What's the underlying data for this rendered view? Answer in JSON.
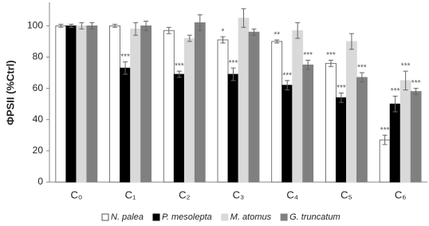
{
  "chart_data": {
    "type": "bar",
    "y_label": "ΦPSII (%Ctrl)",
    "categories": [
      "C₀",
      "C₁",
      "C₂",
      "C₃",
      "C₄",
      "C₅",
      "C₆"
    ],
    "ylim": [
      0,
      115
    ],
    "yticks": [
      0,
      20,
      40,
      60,
      80,
      100
    ],
    "legend": "bottom",
    "series": [
      {
        "name": "N. palea",
        "color": "#ffffff",
        "values": [
          100,
          100,
          97,
          91,
          90,
          76,
          27
        ],
        "errors": [
          1,
          1,
          2,
          2,
          1,
          2,
          3
        ],
        "significance": [
          null,
          null,
          null,
          "*",
          "**",
          "***",
          "***"
        ]
      },
      {
        "name": "P. mesolepta",
        "color": "#000000",
        "values": [
          100,
          73,
          69,
          69,
          62,
          54,
          50
        ],
        "errors": [
          1,
          4,
          2,
          4,
          3,
          3,
          5
        ],
        "significance": [
          null,
          "***",
          "***",
          "***",
          "***",
          "***",
          "***"
        ]
      },
      {
        "name": "M. atomus",
        "color": "#d9d9d9",
        "values": [
          100,
          98,
          92,
          105,
          97,
          90,
          65
        ],
        "errors": [
          2,
          4,
          2,
          6,
          5,
          5,
          6
        ],
        "significance": [
          null,
          null,
          null,
          null,
          null,
          null,
          "***"
        ]
      },
      {
        "name": "G. truncatum",
        "color": "#808080",
        "values": [
          100,
          100,
          102,
          96,
          75,
          67,
          58
        ],
        "errors": [
          2,
          3,
          5,
          2,
          3,
          3,
          2
        ],
        "significance": [
          null,
          null,
          null,
          null,
          "***",
          "***",
          "***"
        ]
      }
    ]
  }
}
